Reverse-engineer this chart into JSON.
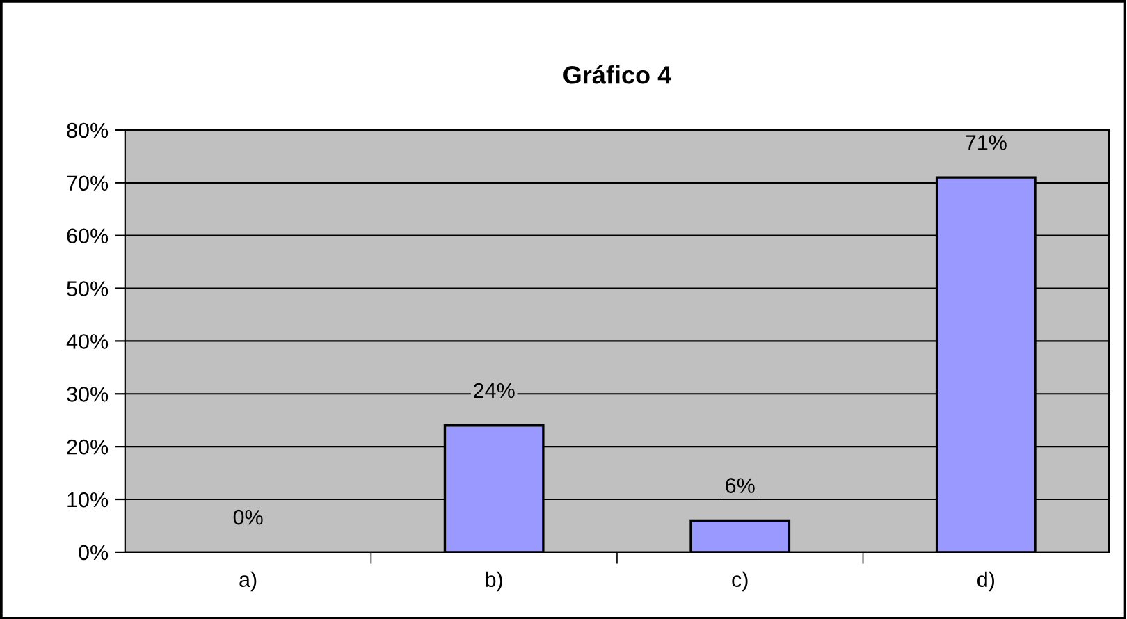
{
  "chart_data": {
    "type": "bar",
    "title": "Gráfico 4",
    "categories": [
      "a)",
      "b)",
      "c)",
      "d)"
    ],
    "values": [
      0,
      24,
      6,
      71
    ],
    "value_labels": [
      "0%",
      "24%",
      "6%",
      "71%"
    ],
    "color": "#9999ff",
    "ylim": [
      0,
      80
    ],
    "yticks": [
      {
        "value": 0,
        "label": "0%"
      },
      {
        "value": 10,
        "label": "10%"
      },
      {
        "value": 20,
        "label": "20%"
      },
      {
        "value": 30,
        "label": "30%"
      },
      {
        "value": 40,
        "label": "40%"
      },
      {
        "value": 50,
        "label": "50%"
      },
      {
        "value": 60,
        "label": "60%"
      },
      {
        "value": 70,
        "label": "70%"
      },
      {
        "value": 80,
        "label": "80%"
      }
    ],
    "grid": "y",
    "legend": false
  }
}
